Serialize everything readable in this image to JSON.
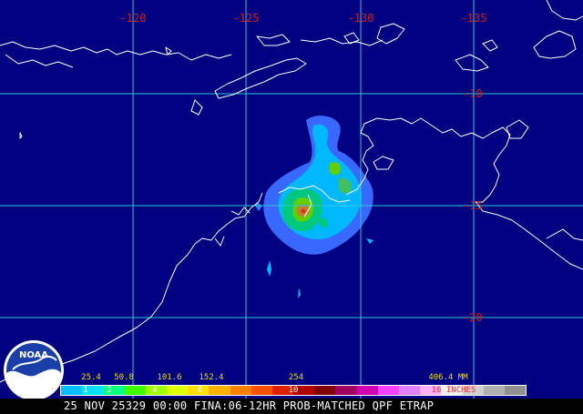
{
  "map": {
    "longitude_labels": [
      "-120",
      "-125",
      "-130",
      "-135"
    ],
    "latitude_labels": [
      "-10",
      "-15",
      "-20"
    ],
    "colors": {
      "background": "#000080",
      "grid": "#2fc8d8",
      "coastline": "#ffffff",
      "labels": "#cc2222"
    }
  },
  "legend": {
    "mm_labels": [
      "25.4",
      "50.8",
      "101.6",
      "152.4",
      "254",
      "406.4 MM"
    ],
    "inch_labels": [
      "1",
      "2",
      "4",
      "6",
      "10",
      "16 INCHES"
    ],
    "colors": [
      "#00c0ff",
      "#00e0ff",
      "#00ff80",
      "#40ff00",
      "#a0ff00",
      "#e0ff00",
      "#ffe000",
      "#ffb000",
      "#ff8000",
      "#ff5000",
      "#e02000",
      "#b00000",
      "#800000",
      "#a00060",
      "#d000b0",
      "#ff40ff",
      "#e080ff",
      "#ffb0ff",
      "#f0f0f0",
      "#d0d0d0",
      "#b0b0b0",
      "#909090"
    ]
  },
  "footer": {
    "text": "25 NOV 25329 00:00 FINA:06-12HR PROB-MATCHED QPF ETRAP"
  },
  "logo": {
    "text": "NOAA",
    "icon": "noaa-logo"
  }
}
